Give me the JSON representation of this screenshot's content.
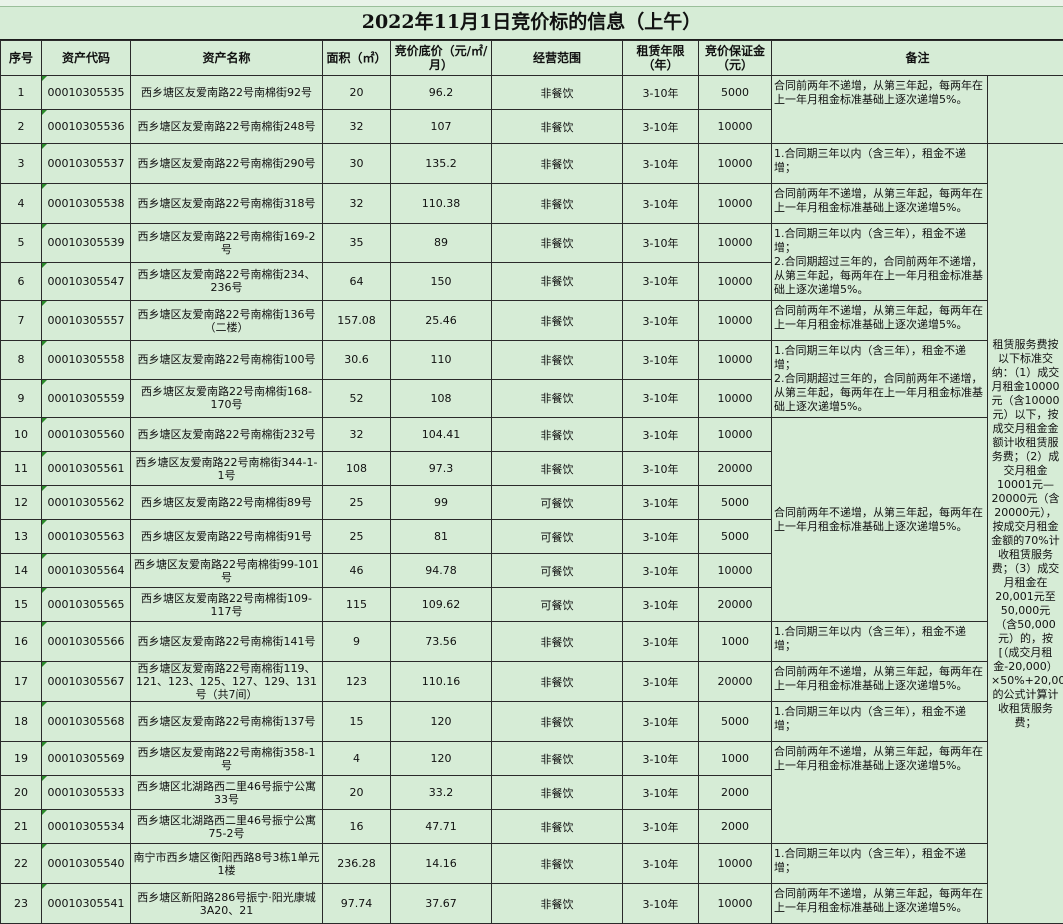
{
  "title": "2022年11月1日竞价标的信息（上午）",
  "headers": {
    "no": "序号",
    "code": "资产代码",
    "name": "资产名称",
    "area": "面积（㎡）",
    "price": "竞价底价（元/㎡/月）",
    "scope": "经营范围",
    "term": "租赁年限（年）",
    "deposit": "竞价保证金（元）",
    "remark": "备注"
  },
  "rows": [
    {
      "no": "1",
      "code": "00010305535",
      "name": "西乡塘区友爱南路22号南棉街92号",
      "area": "20",
      "price": "96.2",
      "scope": "非餐饮",
      "term": "3-10年",
      "deposit": "5000"
    },
    {
      "no": "2",
      "code": "00010305536",
      "name": "西乡塘区友爱南路22号南棉街248号",
      "area": "32",
      "price": "107",
      "scope": "非餐饮",
      "term": "3-10年",
      "deposit": "10000"
    },
    {
      "no": "3",
      "code": "00010305537",
      "name": "西乡塘区友爱南路22号南棉街290号",
      "area": "30",
      "price": "135.2",
      "scope": "非餐饮",
      "term": "3-10年",
      "deposit": "10000"
    },
    {
      "no": "4",
      "code": "00010305538",
      "name": "西乡塘区友爱南路22号南棉街318号",
      "area": "32",
      "price": "110.38",
      "scope": "非餐饮",
      "term": "3-10年",
      "deposit": "10000"
    },
    {
      "no": "5",
      "code": "00010305539",
      "name": "西乡塘区友爱南路22号南棉街169-2号",
      "area": "35",
      "price": "89",
      "scope": "非餐饮",
      "term": "3-10年",
      "deposit": "10000"
    },
    {
      "no": "6",
      "code": "00010305547",
      "name": "西乡塘区友爱南路22号南棉街234、236号",
      "area": "64",
      "price": "150",
      "scope": "非餐饮",
      "term": "3-10年",
      "deposit": "10000"
    },
    {
      "no": "7",
      "code": "00010305557",
      "name": "西乡塘区友爱南路22号南棉街136号（二楼）",
      "area": "157.08",
      "price": "25.46",
      "scope": "非餐饮",
      "term": "3-10年",
      "deposit": "10000"
    },
    {
      "no": "8",
      "code": "00010305558",
      "name": "西乡塘区友爱南路22号南棉街100号",
      "area": "30.6",
      "price": "110",
      "scope": "非餐饮",
      "term": "3-10年",
      "deposit": "10000"
    },
    {
      "no": "9",
      "code": "00010305559",
      "name": "西乡塘区友爱南路22号南棉街168-170号",
      "area": "52",
      "price": "108",
      "scope": "非餐饮",
      "term": "3-10年",
      "deposit": "10000"
    },
    {
      "no": "10",
      "code": "00010305560",
      "name": "西乡塘区友爱南路22号南棉街232号",
      "area": "32",
      "price": "104.41",
      "scope": "非餐饮",
      "term": "3-10年",
      "deposit": "10000"
    },
    {
      "no": "11",
      "code": "00010305561",
      "name": "西乡塘区友爱南路22号南棉街344-1-1号",
      "area": "108",
      "price": "97.3",
      "scope": "非餐饮",
      "term": "3-10年",
      "deposit": "20000"
    },
    {
      "no": "12",
      "code": "00010305562",
      "name": "西乡塘区友爱南路22号南棉街89号",
      "area": "25",
      "price": "99",
      "scope": "可餐饮",
      "term": "3-10年",
      "deposit": "5000"
    },
    {
      "no": "13",
      "code": "00010305563",
      "name": "西乡塘区友爱南路22号南棉街91号",
      "area": "25",
      "price": "81",
      "scope": "可餐饮",
      "term": "3-10年",
      "deposit": "5000"
    },
    {
      "no": "14",
      "code": "00010305564",
      "name": "西乡塘区友爱南路22号南棉街99-101号",
      "area": "46",
      "price": "94.78",
      "scope": "可餐饮",
      "term": "3-10年",
      "deposit": "10000"
    },
    {
      "no": "15",
      "code": "00010305565",
      "name": "西乡塘区友爱南路22号南棉街109-117号",
      "area": "115",
      "price": "109.62",
      "scope": "可餐饮",
      "term": "3-10年",
      "deposit": "20000"
    },
    {
      "no": "16",
      "code": "00010305566",
      "name": "西乡塘区友爱南路22号南棉街141号",
      "area": "9",
      "price": "73.56",
      "scope": "非餐饮",
      "term": "3-10年",
      "deposit": "1000"
    },
    {
      "no": "17",
      "code": "00010305567",
      "name": "西乡塘区友爱南路22号南棉街119、121、123、125、127、129、131号（共7间）",
      "area": "123",
      "price": "110.16",
      "scope": "非餐饮",
      "term": "3-10年",
      "deposit": "20000"
    },
    {
      "no": "18",
      "code": "00010305568",
      "name": "西乡塘区友爱南路22号南棉街137号",
      "area": "15",
      "price": "120",
      "scope": "非餐饮",
      "term": "3-10年",
      "deposit": "5000"
    },
    {
      "no": "19",
      "code": "00010305569",
      "name": "西乡塘区友爱南路22号南棉街358-1号",
      "area": "4",
      "price": "120",
      "scope": "非餐饮",
      "term": "3-10年",
      "deposit": "1000"
    },
    {
      "no": "20",
      "code": "00010305533",
      "name": "西乡塘区北湖路西二里46号振宁公寓33号",
      "area": "20",
      "price": "33.2",
      "scope": "非餐饮",
      "term": "3-10年",
      "deposit": "2000"
    },
    {
      "no": "21",
      "code": "00010305534",
      "name": "西乡塘区北湖路西二里46号振宁公寓75-2号",
      "area": "16",
      "price": "47.71",
      "scope": "非餐饮",
      "term": "3-10年",
      "deposit": "2000"
    },
    {
      "no": "22",
      "code": "00010305540",
      "name": "南宁市西乡塘区衡阳西路8号3栋1单元1楼",
      "area": "236.28",
      "price": "14.16",
      "scope": "非餐饮",
      "term": "3-10年",
      "deposit": "10000"
    },
    {
      "no": "23",
      "code": "00010305541",
      "name": "西乡塘区新阳路286号振宁·阳光康城3A20、21",
      "area": "97.74",
      "price": "37.67",
      "scope": "非餐饮",
      "term": "3-10年",
      "deposit": "10000"
    }
  ],
  "remarks": {
    "r1_2": "合同前两年不递增，从第三年起，每两年在上一年月租金标准基础上逐次递增5%。",
    "r3": "1.合同期三年以内（含三年），租金不递增；",
    "r4": "合同前两年不递增，从第三年起，每两年在上一年月租金标准基础上逐次递增5%。",
    "r5_6": "1.合同期三年以内（含三年），租金不递增；\n2.合同期超过三年的，合同前两年不递增，从第三年起，每两年在上一年月租金标准基础上逐次递增5%。",
    "r7": "合同前两年不递增，从第三年起，每两年在上一年月租金标准基础上逐次递增5%。",
    "r8_9": "1.合同期三年以内（含三年），租金不递增；\n2.合同期超过三年的，合同前两年不递增，从第三年起，每两年在上一年月租金标准基础上逐次递增5%。",
    "r10_15": "合同前两年不递增，从第三年起，每两年在上一年月租金标准基础上逐次递增5%。",
    "r16": "1.合同期三年以内（含三年），租金不递增；",
    "r17": "合同前两年不递增，从第三年起，每两年在上一年月租金标准基础上逐次递增5%。",
    "r18": "1.合同期三年以内（含三年），租金不递增；",
    "r19_21": "合同前两年不递增，从第三年起，每两年在上一年月租金标准基础上逐次递增5%。",
    "r22": "1.合同期三年以内（含三年），租金不递增；",
    "r23": "合同前两年不递增，从第三年起，每两年在上一年月租金标准基础上逐次递增5%。",
    "fee": "租赁服务费按以下标准交纳：（1）成交月租金10000元（含10000元）以下，按成交月租金金额计收租赁服务费；（2）成交月租金10001元—20000元（含20000元），按成交月租金金额的70%计收租赁服务费；（3）成交月租金在20,001元至50,000元（含50,000元）的，按[（成交月租金-20,000）×50%+20,000]*70%的公式计算计收租赁服务费；"
  }
}
